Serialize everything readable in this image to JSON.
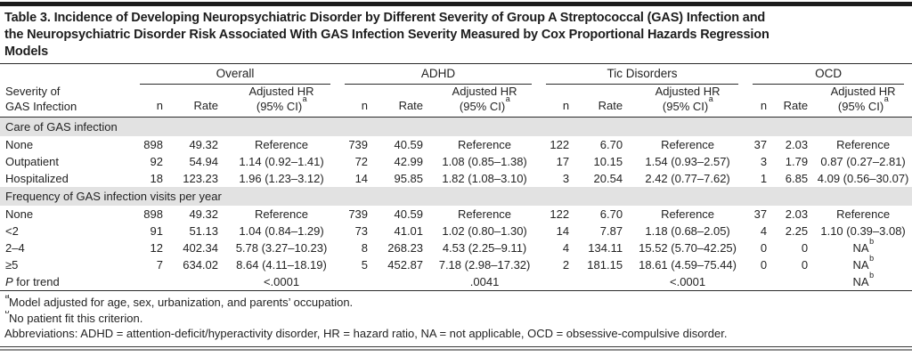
{
  "title_lines": [
    "Table 3. Incidence of Developing Neuropsychiatric Disorder by Different Severity of Group A Streptococcal (GAS) Infection and",
    "the Neuropsychiatric Disorder Risk Associated With GAS Infection Severity Measured by Cox Proportional Hazards Regression",
    "Models"
  ],
  "header": {
    "stub_line1": "Severity of",
    "stub_line2": "GAS Infection",
    "groups": [
      "Overall",
      "ADHD",
      "Tic Disorders",
      "OCD"
    ],
    "sub": {
      "n": "n",
      "rate": "Rate",
      "hr_line1": "Adjusted HR",
      "hr_line2": "(95% CI)",
      "hr_sup": "a"
    }
  },
  "sections": [
    {
      "label": "Care of GAS infection",
      "rows": [
        {
          "label": "None",
          "groups": [
            {
              "n": "898",
              "rate": "49.32",
              "hr": "Reference"
            },
            {
              "n": "739",
              "rate": "40.59",
              "hr": "Reference"
            },
            {
              "n": "122",
              "rate": "6.70",
              "hr": "Reference"
            },
            {
              "n": "37",
              "rate": "2.03",
              "hr": "Reference"
            }
          ]
        },
        {
          "label": "Outpatient",
          "groups": [
            {
              "n": "92",
              "rate": "54.94",
              "hr": "1.14 (0.92–1.41)"
            },
            {
              "n": "72",
              "rate": "42.99",
              "hr": "1.08 (0.85–1.38)"
            },
            {
              "n": "17",
              "rate": "10.15",
              "hr": "1.54 (0.93–2.57)"
            },
            {
              "n": "3",
              "rate": "1.79",
              "hr": "0.87 (0.27–2.81)"
            }
          ]
        },
        {
          "label": "Hospitalized",
          "groups": [
            {
              "n": "18",
              "rate": "123.23",
              "hr": "1.96 (1.23–3.12)"
            },
            {
              "n": "14",
              "rate": "95.85",
              "hr": "1.82 (1.08–3.10)"
            },
            {
              "n": "3",
              "rate": "20.54",
              "hr": "2.42 (0.77–7.62)"
            },
            {
              "n": "1",
              "rate": "6.85",
              "hr": "4.09 (0.56–30.07)"
            }
          ]
        }
      ]
    },
    {
      "label": "Frequency of GAS infection visits per year",
      "rows": [
        {
          "label": "None",
          "groups": [
            {
              "n": "898",
              "rate": "49.32",
              "hr": "Reference"
            },
            {
              "n": "739",
              "rate": "40.59",
              "hr": "Reference"
            },
            {
              "n": "122",
              "rate": "6.70",
              "hr": "Reference"
            },
            {
              "n": "37",
              "rate": "2.03",
              "hr": "Reference"
            }
          ]
        },
        {
          "label": "<2",
          "groups": [
            {
              "n": "91",
              "rate": "51.13",
              "hr": "1.04 (0.84–1.29)"
            },
            {
              "n": "73",
              "rate": "41.01",
              "hr": "1.02 (0.80–1.30)"
            },
            {
              "n": "14",
              "rate": "7.87",
              "hr": "1.18 (0.68–2.05)"
            },
            {
              "n": "4",
              "rate": "2.25",
              "hr": "1.10 (0.39–3.08)"
            }
          ]
        },
        {
          "label": "2–4",
          "groups": [
            {
              "n": "12",
              "rate": "402.34",
              "hr": "5.78 (3.27–10.23)"
            },
            {
              "n": "8",
              "rate": "268.23",
              "hr": "4.53 (2.25–9.11)"
            },
            {
              "n": "4",
              "rate": "134.11",
              "hr": "15.52 (5.70–42.25)"
            },
            {
              "n": "0",
              "rate": "0",
              "hr": "NA",
              "hr_sup": "b"
            }
          ]
        },
        {
          "label": "≥5",
          "groups": [
            {
              "n": "7",
              "rate": "634.02",
              "hr": "8.64 (4.11–18.19)"
            },
            {
              "n": "5",
              "rate": "452.87",
              "hr": "7.18 (2.98–17.32)"
            },
            {
              "n": "2",
              "rate": "181.15",
              "hr": "18.61 (4.59–75.44)"
            },
            {
              "n": "0",
              "rate": "0",
              "hr": "NA",
              "hr_sup": "b"
            }
          ]
        }
      ]
    }
  ],
  "p_for_trend": {
    "label_italic": "P",
    "label_rest": " for trend",
    "values": [
      {
        "text": "<.0001"
      },
      {
        "text": ".0041"
      },
      {
        "text": "<.0001"
      },
      {
        "text": "NA",
        "sup": "b"
      }
    ]
  },
  "footnotes": [
    {
      "marker": "a",
      "text": "Model adjusted for age, sex, urbanization, and parents’ occupation."
    },
    {
      "marker": "b",
      "text": "No patient fit this criterion."
    },
    {
      "marker": "",
      "text": "Abbreviations: ADHD = attention-deficit/hyperactivity disorder, HR = hazard ratio, NA = not applicable, OCD = obsessive-compulsive disorder."
    }
  ],
  "colors": {
    "rule_dark": "#2b2b2b",
    "section_band": "#e2e2e2",
    "text": "#232323",
    "bottom_gray": "#8e8e8e"
  }
}
